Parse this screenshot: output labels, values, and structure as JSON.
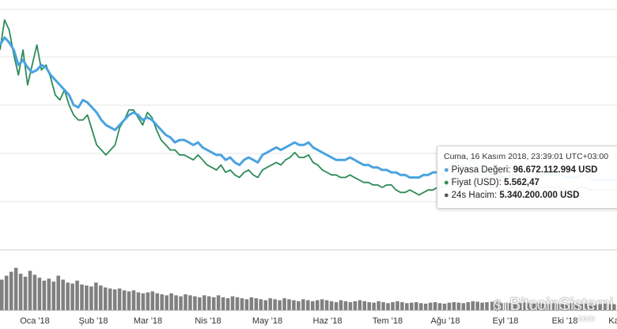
{
  "chart_data": {
    "type": "line",
    "x_tick_labels": [
      "Oca '18",
      "Şub '18",
      "Mar '18",
      "Nis '18",
      "May '18",
      "Haz '18",
      "Tem '18",
      "Ağu '18",
      "Eyl '18",
      "Eki '18",
      "Ka"
    ],
    "grid": true,
    "series": [
      {
        "name": "Piyasa Değeri",
        "color": "#4aa3df",
        "values": [
          0.82,
          0.85,
          0.83,
          0.8,
          0.74,
          0.76,
          0.73,
          0.71,
          0.72,
          0.74,
          0.73,
          0.7,
          0.68,
          0.66,
          0.64,
          0.62,
          0.58,
          0.57,
          0.6,
          0.59,
          0.57,
          0.55,
          0.52,
          0.5,
          0.49,
          0.48,
          0.5,
          0.52,
          0.54,
          0.55,
          0.54,
          0.52,
          0.53,
          0.52,
          0.5,
          0.48,
          0.46,
          0.45,
          0.43,
          0.44,
          0.44,
          0.43,
          0.42,
          0.43,
          0.41,
          0.4,
          0.39,
          0.38,
          0.38,
          0.36,
          0.37,
          0.35,
          0.34,
          0.36,
          0.37,
          0.36,
          0.35,
          0.38,
          0.39,
          0.4,
          0.41,
          0.4,
          0.41,
          0.42,
          0.43,
          0.42,
          0.42,
          0.43,
          0.41,
          0.4,
          0.39,
          0.38,
          0.37,
          0.36,
          0.36,
          0.36,
          0.37,
          0.36,
          0.35,
          0.34,
          0.34,
          0.33,
          0.33,
          0.32,
          0.32,
          0.31,
          0.31,
          0.3,
          0.3,
          0.29,
          0.29,
          0.29,
          0.3,
          0.3,
          0.31,
          0.31,
          0.3,
          0.32,
          0.34,
          0.35,
          0.37,
          0.38,
          0.36,
          0.35,
          0.33,
          0.32,
          0.31,
          0.3,
          0.3,
          0.29,
          0.29,
          0.3,
          0.3,
          0.29,
          0.29,
          0.29,
          0.29,
          0.3,
          0.3,
          0.3,
          0.3,
          0.3,
          0.3,
          0.29,
          0.29,
          0.29,
          0.3,
          0.3,
          0.29,
          0.28,
          0.28,
          0.28,
          0.28,
          0.28,
          0.28
        ]
      },
      {
        "name": "Fiyat (USD)",
        "color": "#2e8b57",
        "values": [
          0.8,
          0.92,
          0.88,
          0.78,
          0.7,
          0.8,
          0.66,
          0.74,
          0.82,
          0.72,
          0.74,
          0.69,
          0.62,
          0.6,
          0.64,
          0.58,
          0.54,
          0.52,
          0.52,
          0.54,
          0.48,
          0.42,
          0.4,
          0.38,
          0.4,
          0.42,
          0.49,
          0.52,
          0.56,
          0.56,
          0.53,
          0.5,
          0.55,
          0.53,
          0.48,
          0.44,
          0.42,
          0.4,
          0.4,
          0.38,
          0.38,
          0.37,
          0.36,
          0.38,
          0.36,
          0.34,
          0.33,
          0.32,
          0.34,
          0.31,
          0.32,
          0.3,
          0.29,
          0.31,
          0.32,
          0.3,
          0.29,
          0.32,
          0.33,
          0.34,
          0.35,
          0.34,
          0.36,
          0.37,
          0.39,
          0.37,
          0.37,
          0.38,
          0.35,
          0.34,
          0.32,
          0.31,
          0.3,
          0.3,
          0.29,
          0.29,
          0.3,
          0.29,
          0.28,
          0.27,
          0.27,
          0.26,
          0.26,
          0.25,
          0.26,
          0.26,
          0.24,
          0.23,
          0.23,
          0.24,
          0.23,
          0.22,
          0.23,
          0.24,
          0.24,
          0.25,
          0.25,
          0.26,
          0.28,
          0.3,
          0.33,
          0.34,
          0.32,
          0.3,
          0.28,
          0.27,
          0.26,
          0.25,
          0.25,
          0.24,
          0.24,
          0.25,
          0.25,
          0.24,
          0.24,
          0.24,
          0.24,
          0.25,
          0.25,
          0.25,
          0.25,
          0.25,
          0.25,
          0.24,
          0.24,
          0.24,
          0.25,
          0.25,
          0.24,
          0.24,
          0.24,
          0.24,
          0.24,
          0.24,
          0.24
        ]
      },
      {
        "name": "24s Hacim",
        "color": "#555555",
        "type": "bar",
        "values": [
          0.62,
          0.7,
          0.78,
          0.86,
          0.74,
          0.68,
          0.8,
          0.72,
          0.66,
          0.6,
          0.64,
          0.58,
          0.7,
          0.62,
          0.56,
          0.54,
          0.6,
          0.52,
          0.5,
          0.48,
          0.56,
          0.5,
          0.46,
          0.44,
          0.42,
          0.44,
          0.4,
          0.38,
          0.4,
          0.36,
          0.34,
          0.36,
          0.38,
          0.34,
          0.32,
          0.3,
          0.34,
          0.3,
          0.28,
          0.32,
          0.3,
          0.28,
          0.26,
          0.3,
          0.28,
          0.26,
          0.3,
          0.26,
          0.24,
          0.28,
          0.26,
          0.24,
          0.22,
          0.26,
          0.24,
          0.22,
          0.2,
          0.24,
          0.22,
          0.2,
          0.24,
          0.22,
          0.2,
          0.18,
          0.22,
          0.2,
          0.18,
          0.2,
          0.22,
          0.2,
          0.18,
          0.16,
          0.2,
          0.18,
          0.16,
          0.18,
          0.2,
          0.18,
          0.16,
          0.15,
          0.18,
          0.16,
          0.14,
          0.16,
          0.18,
          0.16,
          0.14,
          0.15,
          0.16,
          0.14,
          0.13,
          0.15,
          0.16,
          0.14,
          0.13,
          0.15,
          0.16,
          0.15,
          0.14,
          0.16,
          0.18,
          0.17,
          0.15,
          0.16,
          0.17,
          0.15,
          0.14,
          0.15,
          0.14,
          0.13,
          0.14,
          0.15,
          0.14,
          0.13,
          0.14,
          0.13,
          0.12,
          0.14,
          0.13,
          0.12,
          0.13,
          0.14,
          0.12,
          0.12,
          0.13,
          0.12,
          0.11,
          0.12,
          0.13,
          0.12,
          0.12
        ]
      }
    ]
  },
  "tooltip": {
    "date": "Cuma, 16 Kasım 2018, 23:39:01 UTC+03:00",
    "rows": [
      {
        "label": "Piyasa Değeri: ",
        "value": "96.672.112.994 USD",
        "color": "#4aa3df"
      },
      {
        "label": "Fiyat (USD): ",
        "value": "5.562,47",
        "color": "#2e8b57"
      },
      {
        "label": "24s Hacim: ",
        "value": "5.340.200.000 USD",
        "color": "#555555"
      }
    ]
  },
  "watermark": {
    "text": "BitcoinSistemi",
    "sub": ".com"
  }
}
